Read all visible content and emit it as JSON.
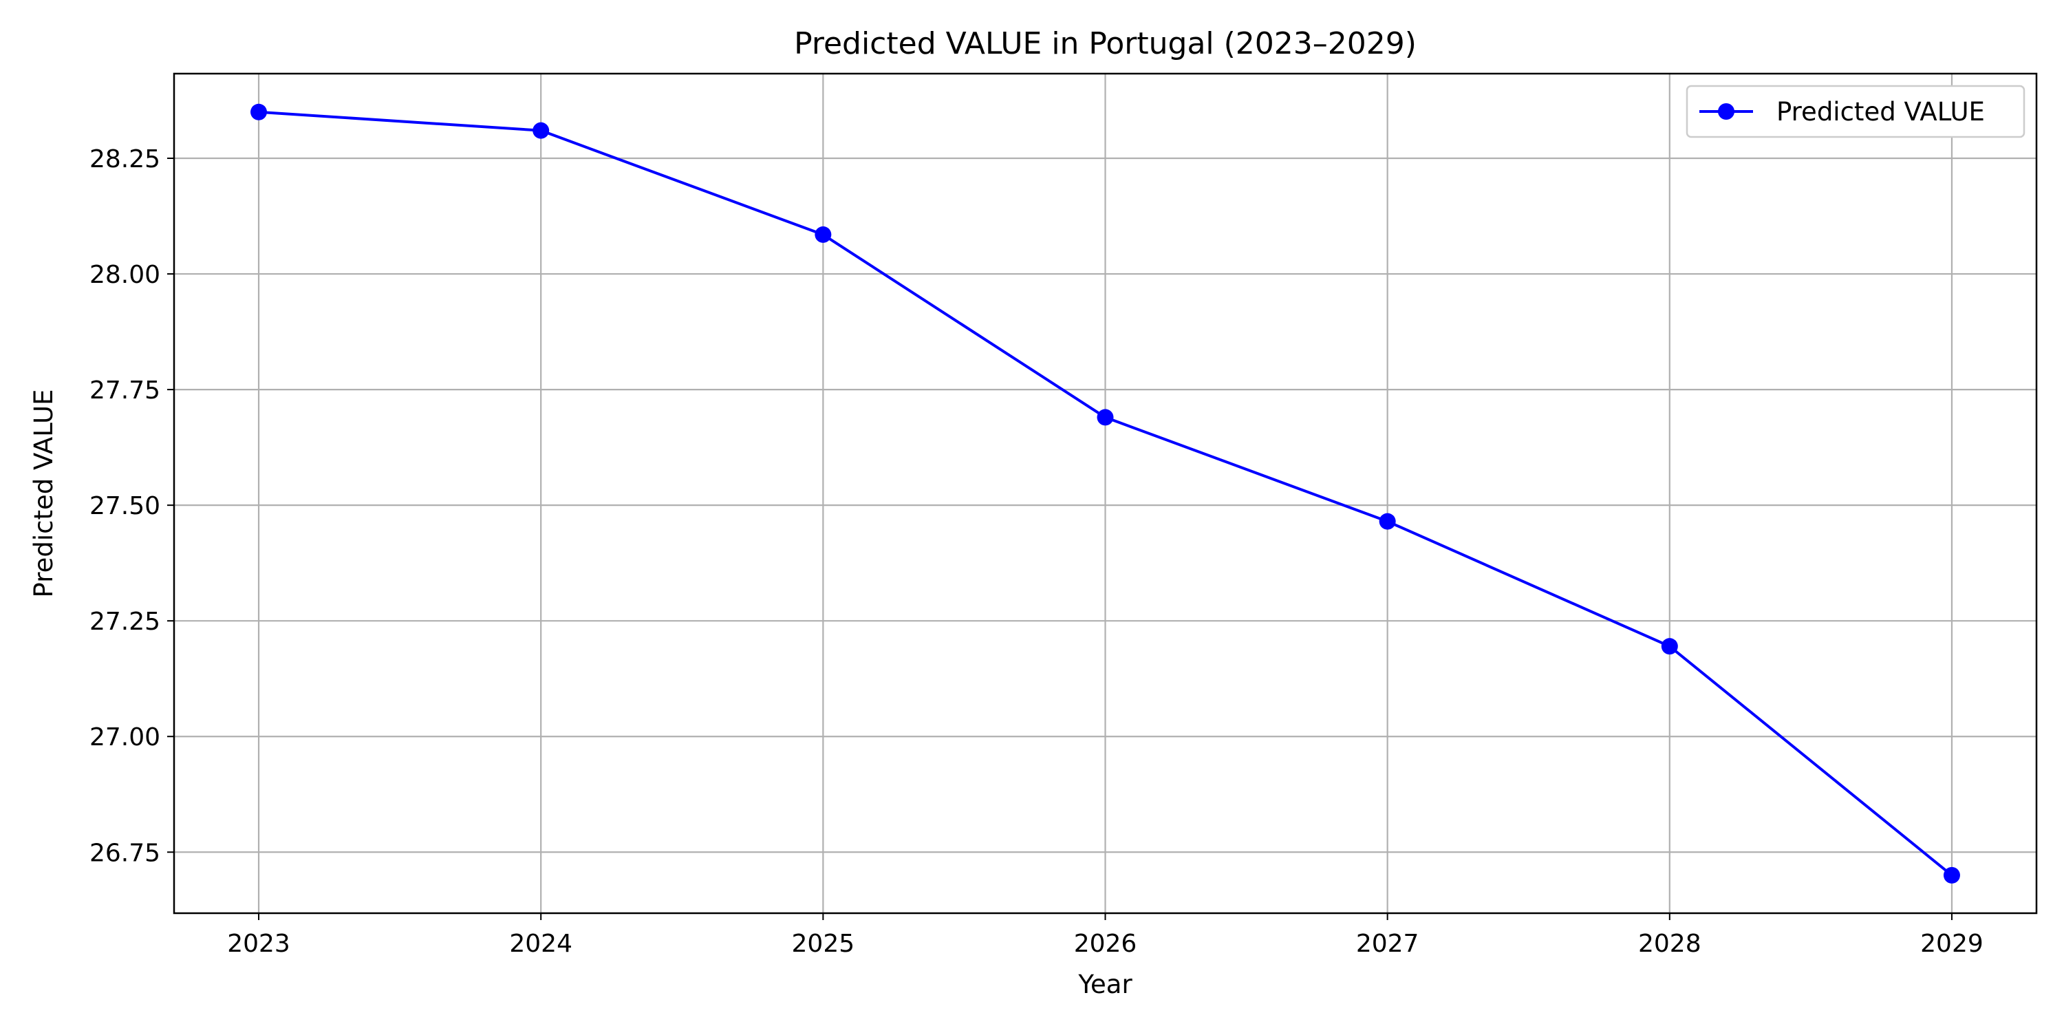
{
  "chart_data": {
    "type": "line",
    "title": "Predicted VALUE in Portugal (2023–2029)",
    "xlabel": "Year",
    "ylabel": "Predicted VALUE",
    "x": [
      2023,
      2024,
      2025,
      2026,
      2027,
      2028,
      2029
    ],
    "x_tick_labels": [
      "2023",
      "2024",
      "2025",
      "2026",
      "2027",
      "2028",
      "2029"
    ],
    "y_ticks": [
      26.75,
      27.0,
      27.25,
      27.5,
      27.75,
      28.0,
      28.25
    ],
    "y_tick_labels": [
      "26.75",
      "27.00",
      "27.25",
      "27.50",
      "27.75",
      "28.00",
      "28.25"
    ],
    "xlim": [
      2022.7,
      2029.3
    ],
    "ylim": [
      26.618,
      28.433
    ],
    "series": [
      {
        "name": "Predicted VALUE",
        "color": "#0000ff",
        "marker": "circle",
        "values": [
          28.35,
          28.31,
          28.085,
          27.69,
          27.465,
          27.195,
          26.7
        ]
      }
    ],
    "grid": true,
    "legend_position": "top-right"
  }
}
